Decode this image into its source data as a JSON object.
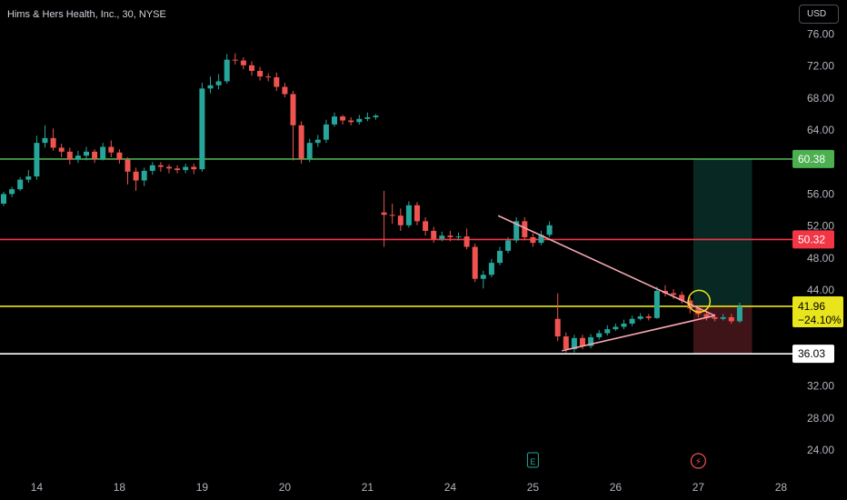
{
  "header": {
    "title": "Hims & Hers Health, Inc., 30, NYSE"
  },
  "currency": {
    "label": "USD"
  },
  "colors": {
    "background": "#000000",
    "up": "#26a69a",
    "down": "#ef5350",
    "green_line": "#4caf50",
    "red_line": "#f23645",
    "yellow_line": "#e8e51c",
    "white_line": "#ffffff",
    "triangle": "#f7a6b0"
  },
  "chart_data": {
    "type": "candlestick",
    "title": "Hims & Hers Health, Inc., 30, NYSE",
    "xlabel": "",
    "ylabel": "",
    "ylim": [
      20.6,
      78.6
    ],
    "grid": false,
    "y_ticks": [
      "76.00",
      "72.00",
      "68.00",
      "64.00",
      "60.00",
      "56.00",
      "52.00",
      "48.00",
      "44.00",
      "40.00",
      "36.00",
      "32.00",
      "28.00",
      "24.00"
    ],
    "x_ticks": [
      {
        "label": "14",
        "x": 4
      },
      {
        "label": "18",
        "x": 14
      },
      {
        "label": "19",
        "x": 24
      },
      {
        "label": "20",
        "x": 34
      },
      {
        "label": "21",
        "x": 44
      },
      {
        "label": "24",
        "x": 54
      },
      {
        "label": "25",
        "x": 64
      },
      {
        "label": "26",
        "x": 74
      },
      {
        "label": "27",
        "x": 84
      },
      {
        "label": "28",
        "x": 94
      }
    ],
    "horizontal_lines": [
      {
        "value": 60.38,
        "label": "60.38",
        "color": "#4caf50"
      },
      {
        "value": 50.32,
        "label": "50.32",
        "color": "#f23645"
      },
      {
        "value": 41.96,
        "label": "41.96",
        "color": "#e8e51c",
        "secondary": "−24.10%"
      },
      {
        "value": 36.03,
        "label": "36.03",
        "color": "#ffffff"
      }
    ],
    "triangle": [
      [
        59.8,
        53.3
      ],
      [
        67.5,
        36.4
      ],
      [
        86.0,
        40.8
      ]
    ],
    "position": {
      "x_start": 83.4,
      "x_end": 90.5,
      "entry": 41.96,
      "target": 60.38,
      "stop": 36.03
    },
    "highlight_circle": {
      "x": 84.1,
      "y": 42.6
    },
    "event_markers": [
      {
        "x": 64,
        "label": "E"
      },
      {
        "x": 84,
        "label": "⚡"
      }
    ],
    "candles": [
      [
        0,
        54.8,
        56.0,
        56.3,
        54.5
      ],
      [
        1,
        56.0,
        56.6,
        56.9,
        55.6
      ],
      [
        2,
        56.6,
        57.8,
        58.1,
        56.4
      ],
      [
        3,
        57.8,
        58.2,
        59.0,
        57.4
      ],
      [
        4,
        58.2,
        62.4,
        63.3,
        57.8
      ],
      [
        5,
        62.4,
        63.0,
        64.6,
        61.8
      ],
      [
        6,
        63.0,
        61.8,
        64.2,
        61.4
      ],
      [
        7,
        61.8,
        61.3,
        62.3,
        60.6
      ],
      [
        8,
        61.3,
        60.3,
        61.8,
        59.7
      ],
      [
        9,
        60.3,
        60.8,
        61.4,
        59.9
      ],
      [
        10,
        60.8,
        61.3,
        61.9,
        60.2
      ],
      [
        11,
        61.3,
        60.4,
        61.6,
        59.9
      ],
      [
        12,
        60.4,
        61.9,
        62.4,
        60.2
      ],
      [
        13,
        61.9,
        61.2,
        62.7,
        60.6
      ],
      [
        14,
        61.2,
        60.3,
        61.6,
        59.8
      ],
      [
        15,
        60.3,
        58.8,
        60.6,
        57.2
      ],
      [
        16,
        58.8,
        57.7,
        59.3,
        56.4
      ],
      [
        17,
        57.7,
        58.9,
        59.3,
        57.0
      ],
      [
        18,
        58.9,
        59.6,
        60.0,
        58.4
      ],
      [
        19,
        59.6,
        59.4,
        60.0,
        58.8
      ],
      [
        20,
        59.4,
        59.2,
        59.7,
        58.6
      ],
      [
        21,
        59.2,
        59.0,
        59.6,
        58.6
      ],
      [
        22,
        59.0,
        59.4,
        59.8,
        58.6
      ],
      [
        23,
        59.4,
        59.1,
        59.8,
        58.5
      ],
      [
        24,
        59.1,
        69.2,
        69.9,
        58.8
      ],
      [
        25,
        69.2,
        69.6,
        70.7,
        68.6
      ],
      [
        26,
        69.6,
        70.1,
        71.0,
        69.1
      ],
      [
        27,
        70.1,
        72.8,
        73.5,
        69.8
      ],
      [
        28,
        72.8,
        72.7,
        73.6,
        72.2
      ],
      [
        29,
        72.7,
        72.1,
        73.1,
        71.6
      ],
      [
        30,
        72.1,
        71.4,
        72.6,
        70.8
      ],
      [
        31,
        71.4,
        70.7,
        71.9,
        70.2
      ],
      [
        32,
        70.7,
        70.6,
        71.1,
        70.1
      ],
      [
        33,
        70.6,
        69.4,
        71.2,
        68.9
      ],
      [
        34,
        69.4,
        68.5,
        69.9,
        68.1
      ],
      [
        35,
        68.5,
        64.6,
        68.9,
        60.2
      ],
      [
        36,
        64.6,
        60.4,
        65.1,
        59.8
      ],
      [
        37,
        60.4,
        62.4,
        62.9,
        60.0
      ],
      [
        38,
        62.4,
        62.8,
        63.4,
        61.9
      ],
      [
        39,
        62.8,
        64.7,
        65.3,
        62.4
      ],
      [
        40,
        64.7,
        65.7,
        66.2,
        64.4
      ],
      [
        41,
        65.7,
        65.2,
        65.9,
        64.7
      ],
      [
        42,
        65.2,
        65.0,
        65.6,
        64.6
      ],
      [
        43,
        65.0,
        65.4,
        65.9,
        64.7
      ],
      [
        44,
        65.4,
        65.6,
        66.2,
        65.1
      ],
      [
        45,
        65.6,
        65.8,
        66.0,
        65.3
      ],
      [
        46,
        53.7,
        53.4,
        56.4,
        49.4
      ],
      [
        47,
        53.4,
        53.3,
        54.8,
        52.3
      ],
      [
        48,
        53.3,
        52.1,
        54.2,
        51.4
      ],
      [
        49,
        52.1,
        54.6,
        55.1,
        51.8
      ],
      [
        50,
        54.6,
        52.6,
        55.0,
        52.1
      ],
      [
        51,
        52.6,
        51.4,
        53.1,
        50.8
      ],
      [
        52,
        51.4,
        50.4,
        51.9,
        49.9
      ],
      [
        53,
        50.4,
        50.8,
        51.3,
        50.1
      ],
      [
        54,
        50.8,
        50.6,
        51.4,
        50.1
      ],
      [
        55,
        50.6,
        50.7,
        51.2,
        50.2
      ],
      [
        56,
        50.7,
        49.4,
        51.7,
        49.1
      ],
      [
        57,
        49.4,
        45.4,
        49.8,
        45.0
      ],
      [
        58,
        45.4,
        45.9,
        46.4,
        44.2
      ],
      [
        59,
        45.9,
        47.4,
        47.9,
        45.6
      ],
      [
        60,
        47.4,
        48.9,
        49.4,
        47.1
      ],
      [
        61,
        48.9,
        50.2,
        50.6,
        48.6
      ],
      [
        62,
        50.2,
        52.6,
        53.1,
        49.9
      ],
      [
        63,
        52.6,
        50.6,
        53.1,
        50.2
      ],
      [
        64,
        50.6,
        49.9,
        51.1,
        49.4
      ],
      [
        65,
        49.9,
        50.9,
        51.4,
        49.6
      ],
      [
        66,
        50.9,
        52.1,
        52.6,
        50.6
      ],
      [
        67,
        40.4,
        38.2,
        43.6,
        37.6
      ],
      [
        68,
        38.2,
        36.6,
        38.7,
        36.2
      ],
      [
        69,
        36.6,
        38.0,
        38.4,
        36.2
      ],
      [
        70,
        38.0,
        37.0,
        38.4,
        36.6
      ],
      [
        71,
        37.0,
        38.1,
        38.5,
        36.7
      ],
      [
        72,
        38.1,
        38.6,
        39.0,
        37.8
      ],
      [
        73,
        38.6,
        39.1,
        39.6,
        38.3
      ],
      [
        74,
        39.1,
        39.4,
        39.8,
        38.9
      ],
      [
        75,
        39.4,
        39.8,
        40.3,
        39.1
      ],
      [
        76,
        39.8,
        40.4,
        40.8,
        39.5
      ],
      [
        77,
        40.4,
        40.7,
        41.1,
        40.2
      ],
      [
        78,
        40.7,
        40.5,
        41.0,
        40.2
      ],
      [
        79,
        40.5,
        43.9,
        44.4,
        40.4
      ],
      [
        80,
        43.9,
        43.6,
        44.6,
        43.2
      ],
      [
        81,
        43.6,
        43.4,
        44.1,
        42.9
      ],
      [
        82,
        43.4,
        42.7,
        43.8,
        42.3
      ],
      [
        83,
        42.7,
        41.7,
        43.1,
        41.1
      ],
      [
        84,
        41.7,
        41.0,
        42.1,
        40.6
      ],
      [
        85,
        41.0,
        40.6,
        41.4,
        40.2
      ],
      [
        86,
        40.6,
        40.4,
        41.0,
        40.1
      ],
      [
        87,
        40.4,
        40.6,
        41.0,
        40.2
      ],
      [
        88,
        40.6,
        40.1,
        41.0,
        39.8
      ],
      [
        89,
        40.1,
        41.96,
        42.4,
        39.9
      ]
    ]
  }
}
